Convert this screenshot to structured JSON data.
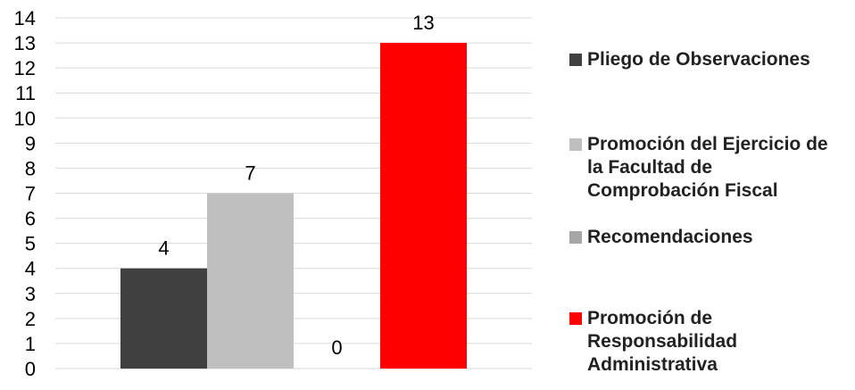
{
  "chart_data": {
    "type": "bar",
    "categories": [
      ""
    ],
    "series": [
      {
        "name": "Pliego de Observaciones",
        "color": "#404040",
        "values": [
          4
        ]
      },
      {
        "name": "Promoción del Ejercicio de la Facultad de Comprobación Fiscal",
        "color": "#bfbfbf",
        "values": [
          7
        ]
      },
      {
        "name": "Recomendaciones",
        "color": "#a6a6a6",
        "values": [
          0
        ]
      },
      {
        "name": "Promoción de Responsabilidad Administrativa",
        "color": "#ff0000",
        "values": [
          13
        ]
      }
    ],
    "ylim": [
      0,
      14
    ],
    "yticks": [
      0,
      1,
      2,
      3,
      4,
      5,
      6,
      7,
      8,
      9,
      10,
      11,
      12,
      13,
      14
    ],
    "grid": true,
    "legend_position": "right",
    "data_labels": [
      "4",
      "7",
      "0",
      "13"
    ]
  }
}
